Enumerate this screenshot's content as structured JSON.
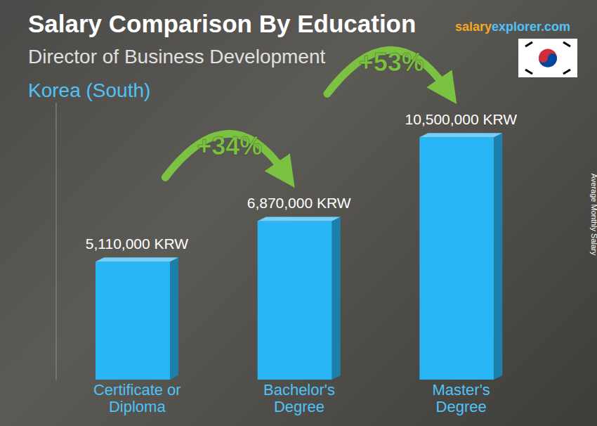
{
  "chart_data": {
    "type": "bar",
    "title": "Salary Comparison By Education",
    "subtitle": "Director of Business Development",
    "region": "Korea (South)",
    "source": "salaryexplorer.com",
    "ylabel": "Average Monthly Salary",
    "categories": [
      "Certificate or Diploma",
      "Bachelor's Degree",
      "Master's Degree"
    ],
    "values": [
      5110000,
      6870000,
      10500000
    ],
    "value_labels": [
      "5,110,000 KRW",
      "6,870,000 KRW",
      "10,500,000 KRW"
    ],
    "color": "#29b6f6",
    "ylim": [
      0,
      12000000
    ],
    "yticks": [],
    "tick_labels": "x",
    "data_labels": true,
    "grid": false,
    "annotations": [
      {
        "text": "+34%",
        "from": "Certificate or Diploma",
        "to": "Bachelor's Degree"
      },
      {
        "text": "+53%",
        "from": "Bachelor's Degree",
        "to": "Master's Degree"
      }
    ]
  }
}
